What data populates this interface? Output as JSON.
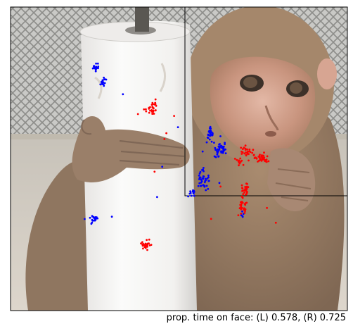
{
  "caption": "prop. time on face: (L) 0.578, (R) 0.725",
  "colors": {
    "left_gaze": "#0000ff",
    "right_gaze": "#ff0000",
    "frame": "#000000",
    "face_box": "#000000"
  },
  "image": {
    "subject": "rhesus-macaque-photo",
    "elements": [
      "chain-link-fence-background",
      "white-pvc-pole",
      "monkey-hand",
      "monkey-face"
    ]
  }
}
